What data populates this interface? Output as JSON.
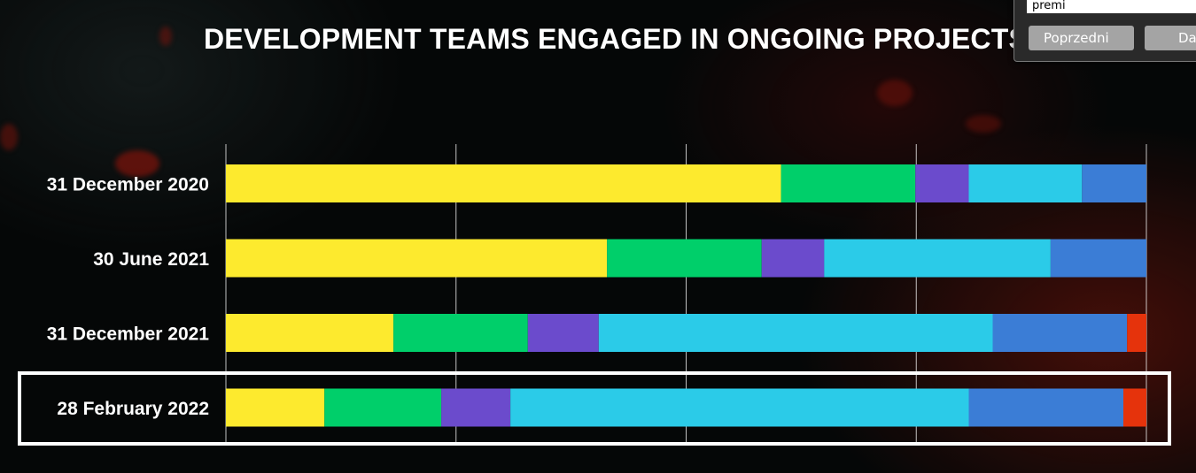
{
  "chart_data": {
    "type": "bar",
    "orientation": "horizontal",
    "stacked": true,
    "normalized": true,
    "title": "DEVELOPMENT TEAMS ENGAGED IN ONGOING PROJECTS",
    "categories": [
      "31 December 2020",
      "30 June 2021",
      "31 December 2021",
      "28 February 2022"
    ],
    "segment_colors": [
      "#fdea2e",
      "#00cf6a",
      "#6b4bcc",
      "#2bcbe8",
      "#3b7dd6",
      "#e5330c"
    ],
    "segments": [
      [
        0.603,
        0.146,
        0.058,
        0.123,
        0.07,
        0.0
      ],
      [
        0.414,
        0.168,
        0.068,
        0.246,
        0.104,
        0.0
      ],
      [
        0.182,
        0.146,
        0.077,
        0.428,
        0.146,
        0.021
      ],
      [
        0.107,
        0.127,
        0.075,
        0.498,
        0.168,
        0.025
      ]
    ],
    "xlim": [
      0,
      1
    ],
    "gridlines": 4,
    "highlighted_category": "28 February 2022"
  },
  "find_bar": {
    "search_value": "premi",
    "prev_label": "Poprzedni",
    "next_label": "Dalej"
  }
}
